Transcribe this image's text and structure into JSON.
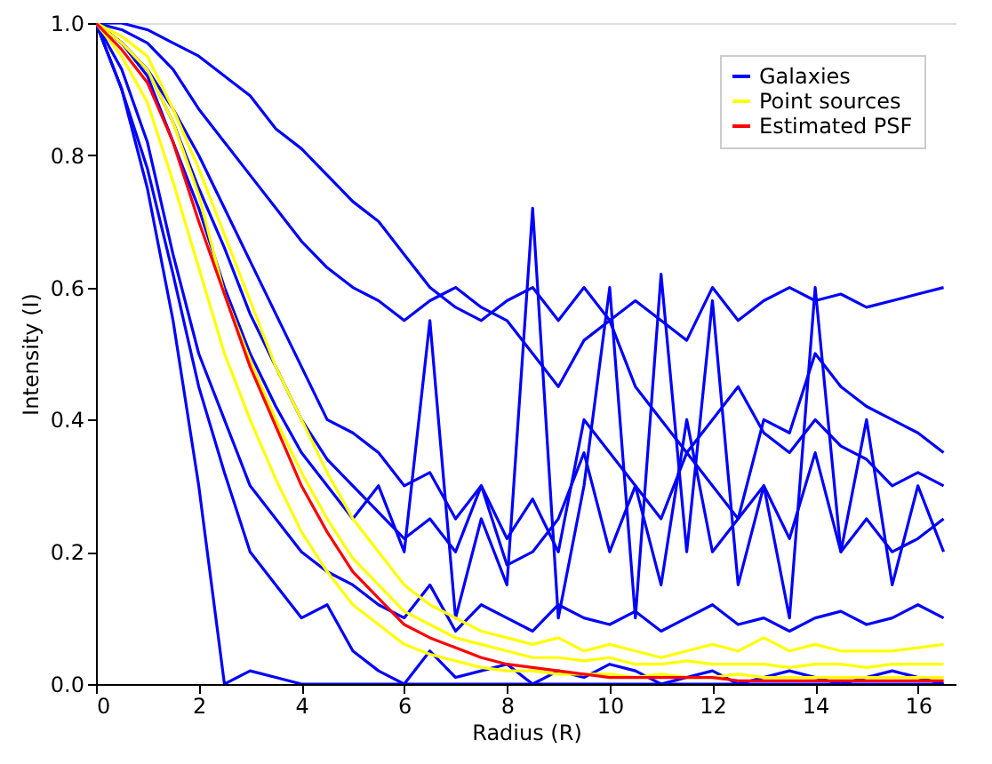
{
  "chart_data": {
    "type": "line",
    "xlabel": "Radius (R)",
    "ylabel": "Intensity (I)",
    "x": [
      0,
      0.5,
      1,
      1.5,
      2,
      2.5,
      3,
      3.5,
      4,
      4.5,
      5,
      5.5,
      6,
      6.5,
      7,
      7.5,
      8,
      8.5,
      9,
      9.5,
      10,
      10.5,
      11,
      11.5,
      12,
      12.5,
      13,
      13.5,
      14,
      14.5,
      15,
      15.5,
      16,
      16.5
    ],
    "xlim": [
      0,
      16.75
    ],
    "xticks": [
      0,
      2,
      4,
      6,
      8,
      10,
      12,
      14,
      16
    ],
    "ylim": [
      0,
      1
    ],
    "yticks": [
      {
        "value": 0,
        "label": "0.0"
      },
      0.2,
      0.4,
      0.6,
      0.8,
      {
        "value": 1,
        "label": "1.0"
      }
    ],
    "grid": false,
    "legend": "top right",
    "marker": "none",
    "line_style": "solid",
    "series": [
      {
        "name": "Galaxies",
        "color": "#0000ff",
        "values": [
          1,
          1,
          0.99,
          0.97,
          0.95,
          0.92,
          0.89,
          0.84,
          0.81,
          0.77,
          0.73,
          0.7,
          0.65,
          0.6,
          0.57,
          0.55,
          0.58,
          0.6,
          0.55,
          0.6,
          0.55,
          0.58,
          0.55,
          0.52,
          0.6,
          0.55,
          0.58,
          0.6,
          0.58,
          0.59,
          0.57,
          0.58,
          0.59,
          0.6
        ]
      },
      {
        "color": "#0000ff",
        "values": [
          1,
          0.99,
          0.97,
          0.93,
          0.87,
          0.82,
          0.77,
          0.72,
          0.67,
          0.63,
          0.6,
          0.58,
          0.55,
          0.58,
          0.6,
          0.57,
          0.55,
          0.5,
          0.45,
          0.52,
          0.55,
          0.45,
          0.4,
          0.35,
          0.4,
          0.45,
          0.38,
          0.35,
          0.4,
          0.36,
          0.34,
          0.3,
          0.32,
          0.3
        ]
      },
      {
        "color": "#0000ff",
        "values": [
          1,
          0.9,
          0.75,
          0.55,
          0.3,
          0,
          0.02,
          0.01,
          0,
          0,
          0,
          0,
          0,
          0,
          0,
          0,
          0,
          0,
          0,
          0,
          0,
          0,
          0,
          0,
          0,
          0,
          0,
          0,
          0,
          0,
          0,
          0,
          0,
          0
        ]
      },
      {
        "color": "#0000ff",
        "values": [
          1,
          0.97,
          0.92,
          0.82,
          0.72,
          0.6,
          0.5,
          0.42,
          0.35,
          0.3,
          0.25,
          0.3,
          0.2,
          0.55,
          0.1,
          0.25,
          0.15,
          0.72,
          0.1,
          0.3,
          0.6,
          0.1,
          0.62,
          0.2,
          0.58,
          0.15,
          0.3,
          0.1,
          0.6,
          0.2,
          0.4,
          0.15,
          0.3,
          0.2
        ]
      },
      {
        "color": "#0000ff",
        "values": [
          1,
          0.93,
          0.82,
          0.65,
          0.5,
          0.4,
          0.3,
          0.25,
          0.2,
          0.17,
          0.15,
          0.12,
          0.1,
          0.15,
          0.08,
          0.12,
          0.1,
          0.08,
          0.12,
          0.1,
          0.09,
          0.11,
          0.08,
          0.1,
          0.12,
          0.09,
          0.1,
          0.08,
          0.1,
          0.11,
          0.09,
          0.1,
          0.12,
          0.1
        ]
      },
      {
        "color": "#0000ff",
        "values": [
          1,
          0.97,
          0.93,
          0.85,
          0.75,
          0.66,
          0.56,
          0.48,
          0.4,
          0.34,
          0.3,
          0.26,
          0.22,
          0.25,
          0.2,
          0.3,
          0.18,
          0.2,
          0.25,
          0.35,
          0.2,
          0.3,
          0.15,
          0.4,
          0.2,
          0.25,
          0.3,
          0.22,
          0.35,
          0.2,
          0.25,
          0.2,
          0.22,
          0.25
        ]
      },
      {
        "color": "#0000ff",
        "values": [
          1,
          0.9,
          0.78,
          0.62,
          0.45,
          0.32,
          0.2,
          0.15,
          0.1,
          0.12,
          0.05,
          0.02,
          0,
          0.05,
          0.01,
          0.02,
          0.03,
          0,
          0.02,
          0.01,
          0.03,
          0.02,
          0,
          0.01,
          0.02,
          0,
          0.01,
          0.02,
          0.01,
          0,
          0.01,
          0.02,
          0.01,
          0
        ]
      },
      {
        "color": "#0000ff",
        "values": [
          1,
          0.97,
          0.93,
          0.87,
          0.8,
          0.72,
          0.64,
          0.56,
          0.48,
          0.4,
          0.38,
          0.35,
          0.3,
          0.32,
          0.25,
          0.3,
          0.22,
          0.28,
          0.2,
          0.4,
          0.35,
          0.3,
          0.25,
          0.35,
          0.3,
          0.25,
          0.4,
          0.38,
          0.5,
          0.45,
          0.42,
          0.4,
          0.38,
          0.35
        ]
      },
      {
        "name": "Point sources",
        "color": "#ffff00",
        "values": [
          1,
          0.98,
          0.95,
          0.87,
          0.78,
          0.68,
          0.58,
          0.48,
          0.4,
          0.32,
          0.25,
          0.2,
          0.15,
          0.12,
          0.1,
          0.08,
          0.07,
          0.06,
          0.07,
          0.05,
          0.06,
          0.05,
          0.04,
          0.05,
          0.06,
          0.05,
          0.07,
          0.05,
          0.06,
          0.05,
          0.05,
          0.05,
          0.055,
          0.06
        ]
      },
      {
        "color": "#ffff00",
        "values": [
          1,
          0.97,
          0.93,
          0.85,
          0.74,
          0.59,
          0.49,
          0.4,
          0.32,
          0.25,
          0.19,
          0.15,
          0.11,
          0.09,
          0.07,
          0.06,
          0.05,
          0.04,
          0.04,
          0.035,
          0.04,
          0.03,
          0.03,
          0.035,
          0.03,
          0.03,
          0.03,
          0.025,
          0.03,
          0.03,
          0.025,
          0.03,
          0.03,
          0.03
        ]
      },
      {
        "color": "#ffff00",
        "values": [
          1,
          0.95,
          0.88,
          0.76,
          0.63,
          0.5,
          0.4,
          0.31,
          0.23,
          0.17,
          0.12,
          0.09,
          0.06,
          0.045,
          0.035,
          0.025,
          0.02,
          0.02,
          0.015,
          0.015,
          0.015,
          0.01,
          0.015,
          0.01,
          0.01,
          0.015,
          0.01,
          0.01,
          0.01,
          0.01,
          0.01,
          0.01,
          0.01,
          0.01
        ]
      },
      {
        "name": "Estimated PSF",
        "color": "#ff0000",
        "values": [
          1,
          0.96,
          0.91,
          0.82,
          0.7,
          0.59,
          0.48,
          0.39,
          0.3,
          0.23,
          0.17,
          0.13,
          0.09,
          0.07,
          0.055,
          0.04,
          0.03,
          0.025,
          0.02,
          0.015,
          0.01,
          0.01,
          0.01,
          0.01,
          0.01,
          0.005,
          0.005,
          0.005,
          0.005,
          0.005,
          0.005,
          0.005,
          0.005,
          0.005
        ]
      }
    ]
  }
}
